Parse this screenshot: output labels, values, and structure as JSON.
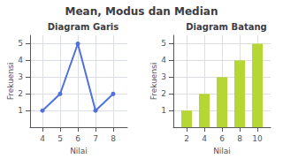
{
  "title": "Mean, Modus dan Median",
  "chart_data": [
    {
      "type": "line",
      "title": "Diagram Garis",
      "x": [
        4,
        5,
        6,
        7,
        8
      ],
      "values": [
        1,
        2,
        5,
        1,
        2
      ],
      "xlabel": "Nilai",
      "ylabel": "Frekuensi",
      "xlim": [
        3.3,
        8.8
      ],
      "xticks": [
        4,
        5,
        6,
        7,
        8
      ],
      "ylim": [
        0,
        5.5
      ],
      "yticks": [
        1,
        2,
        3,
        4,
        5
      ],
      "grid": true,
      "marker": "circle"
    },
    {
      "type": "bar",
      "title": "Diagram Batang",
      "x": [
        2,
        4,
        6,
        8,
        10
      ],
      "values": [
        1,
        2,
        3,
        4,
        5
      ],
      "xlabel": "Nilai",
      "ylabel": "Frekuensi",
      "xlim": [
        0.5,
        11.5
      ],
      "xticks": [
        2,
        4,
        6,
        8,
        10
      ],
      "ylim": [
        0,
        5.5
      ],
      "yticks": [
        1,
        2,
        3,
        4,
        5
      ],
      "grid": true
    }
  ]
}
